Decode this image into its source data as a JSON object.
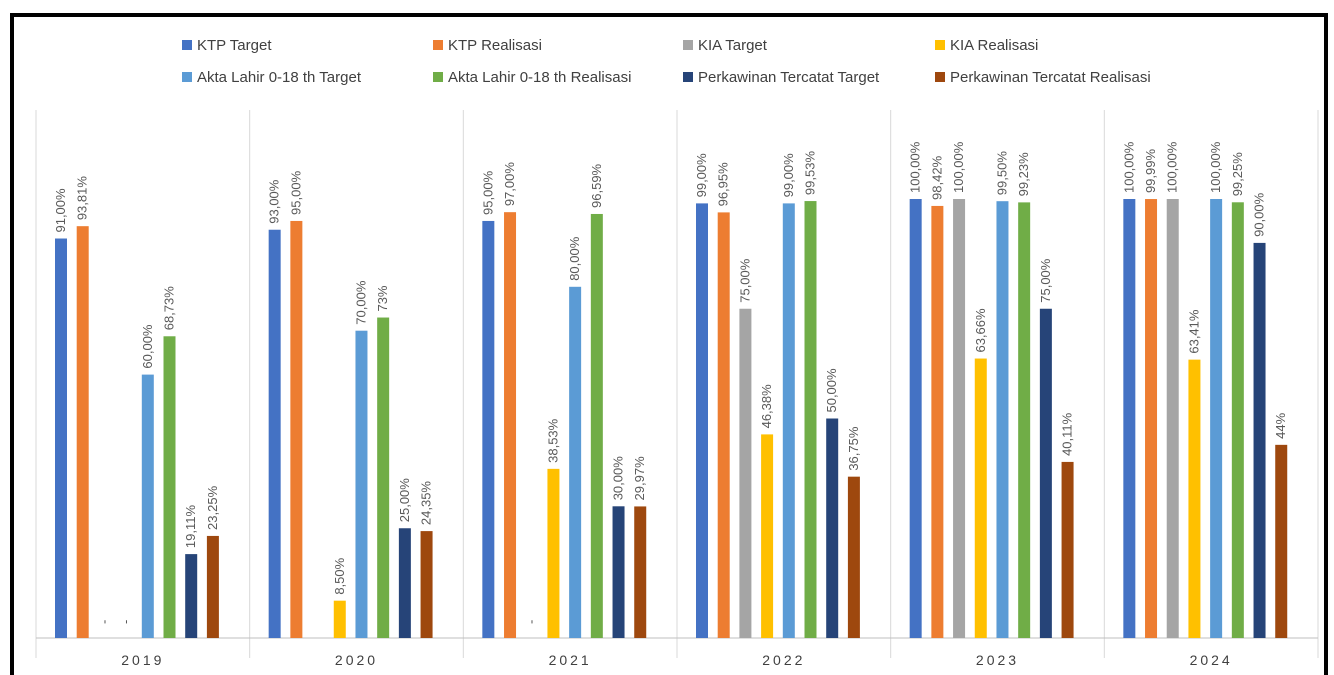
{
  "chart_data": {
    "type": "bar",
    "title": "",
    "xlabel": "",
    "ylabel": "",
    "ylim": [
      0,
      1
    ],
    "grid": false,
    "legend_position": "top",
    "categories": [
      "2019",
      "2020",
      "2021",
      "2022",
      "2023",
      "2024"
    ],
    "series": [
      {
        "name": "KTP Target",
        "color": "#4472C4",
        "values": [
          0.91,
          0.93,
          0.95,
          0.99,
          1.0,
          1.0
        ],
        "labels": [
          "91,00%",
          "93,00%",
          "95,00%",
          "99,00%",
          "100,00%",
          "100,00%"
        ]
      },
      {
        "name": "KTP  Realisasi",
        "color": "#ED7D31",
        "values": [
          0.9381,
          0.95,
          0.97,
          0.9695,
          0.9842,
          0.9999
        ],
        "labels": [
          "93,81%",
          "95,00%",
          "97,00%",
          "96,95%",
          "98,42%",
          "99,99%"
        ]
      },
      {
        "name": "KIA Target",
        "color": "#A5A5A5",
        "values": [
          0,
          0,
          0,
          0.75,
          1.0,
          1.0
        ],
        "labels": [
          "-",
          "",
          "-",
          "75,00%",
          "100,00%",
          "100,00%"
        ]
      },
      {
        "name": "KIA  Realisasi",
        "color": "#FFC000",
        "values": [
          0,
          0.085,
          0.3853,
          0.4638,
          0.6366,
          0.6341
        ],
        "labels": [
          "-",
          "8,50%",
          "38,53%",
          "46,38%",
          "63,66%",
          "63,41%"
        ]
      },
      {
        "name": "Akta Lahir 0-18 th Target",
        "color": "#5B9BD5",
        "values": [
          0.6,
          0.7,
          0.8,
          0.99,
          0.995,
          1.0
        ],
        "labels": [
          "60,00%",
          "70,00%",
          "80,00%",
          "99,00%",
          "99,50%",
          "100,00%"
        ]
      },
      {
        "name": "Akta Lahir 0-18 th  Realisasi",
        "color": "#70AD47",
        "values": [
          0.6873,
          0.73,
          0.9659,
          0.9953,
          0.9923,
          0.9925
        ],
        "labels": [
          "68,73%",
          "73%",
          "96,59%",
          "99,53%",
          "99,23%",
          "99,25%"
        ]
      },
      {
        "name": "Perkawinan Tercatat Target",
        "color": "#264478",
        "values": [
          0.1911,
          0.25,
          0.3,
          0.5,
          0.75,
          0.9
        ],
        "labels": [
          "19,11%",
          "25,00%",
          "30,00%",
          "50,00%",
          "75,00%",
          "90,00%"
        ]
      },
      {
        "name": "Perkawinan Tercatat  Realisasi",
        "color": "#9E480E",
        "values": [
          0.2325,
          0.2435,
          0.2997,
          0.3675,
          0.4011,
          0.44
        ],
        "labels": [
          "23,25%",
          "24,35%",
          "29,97%",
          "36,75%",
          "40,11%",
          "44%"
        ]
      }
    ]
  }
}
